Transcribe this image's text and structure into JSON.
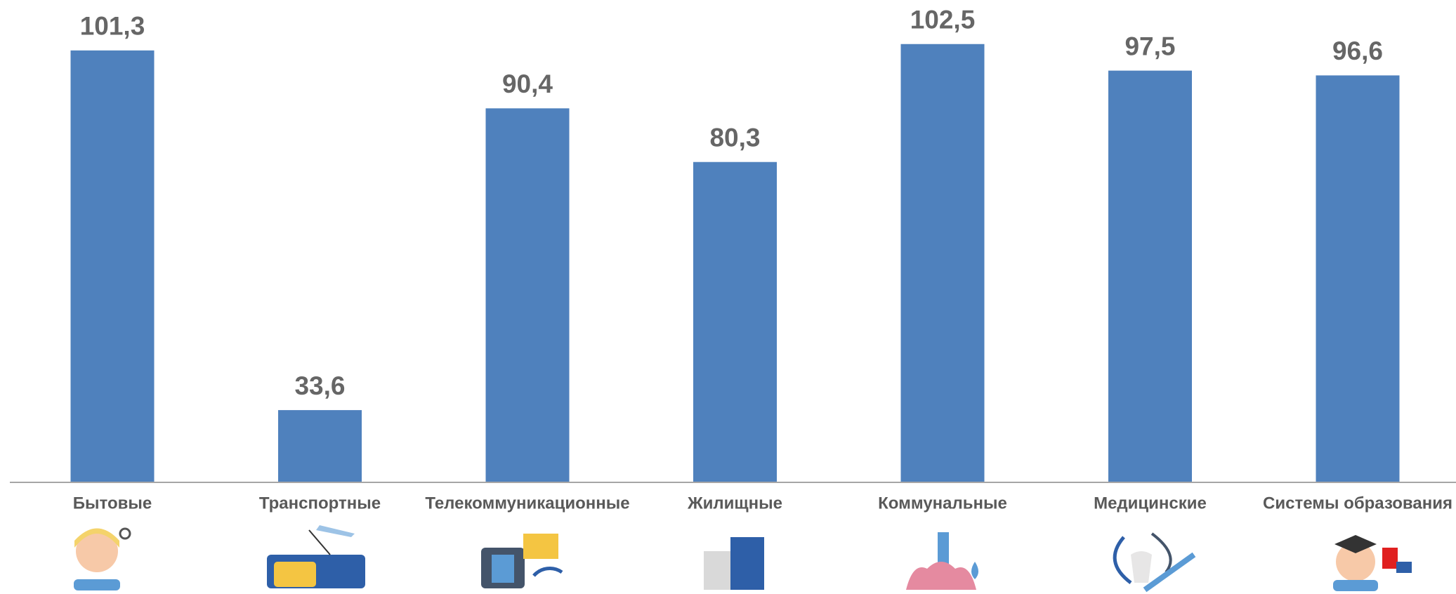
{
  "chart_data": {
    "type": "bar",
    "categories": [
      "Бытовые",
      "Транспортные",
      "Телекоммуникационные",
      "Жилищные",
      "Коммунальные",
      "Медицинские",
      "Системы образования"
    ],
    "values": [
      101.3,
      33.6,
      90.4,
      80.3,
      102.5,
      97.5,
      96.6
    ],
    "value_labels": [
      "101,3",
      "33,6",
      "90,4",
      "80,3",
      "102,5",
      "97,5",
      "96,6"
    ],
    "color": "#4f81bd",
    "ylim": [
      20,
      110
    ]
  }
}
